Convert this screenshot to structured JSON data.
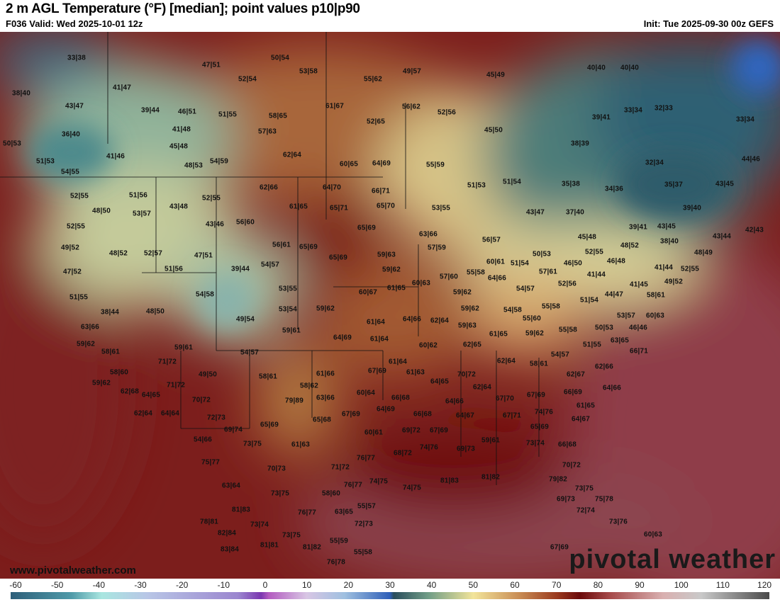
{
  "header": {
    "title": "2 m AGL Temperature (°F) [median]; point values p10|p90",
    "valid": "F036 Valid: Wed 2025-10-01 12z",
    "init": "Init: Tue 2025-09-30 00z GEFS"
  },
  "footer": {
    "website": "www.pivotalweather.com",
    "logo_text": "pivotal weather"
  },
  "colorbar": {
    "unit": "°F",
    "ticks": [
      "-60",
      "-50",
      "-40",
      "-30",
      "-20",
      "-10",
      "0",
      "10",
      "20",
      "30",
      "40",
      "50",
      "60",
      "70",
      "80",
      "90",
      "100",
      "110",
      "120"
    ]
  },
  "colors": {
    "cold": "#2e5f7a",
    "mild": "#f2e49a",
    "warm": "#6b0a0a",
    "ocean_warm": "#8d3b46"
  },
  "point_values": [
    "33|38",
    "38|40",
    "43|47",
    "47|51",
    "50|54",
    "53|58",
    "52|54",
    "55|62",
    "49|57",
    "45|49",
    "41|47",
    "39|44",
    "46|51",
    "51|55",
    "58|65",
    "61|67",
    "56|62",
    "52|56",
    "40|40",
    "40|40",
    "33|34",
    "32|33",
    "33|34",
    "39|41",
    "36|40",
    "50|53",
    "41|48",
    "57|63",
    "52|65",
    "45|50",
    "38|39",
    "45|48",
    "41|46",
    "51|53",
    "54|55",
    "54|59",
    "62|64",
    "48|53",
    "60|65",
    "64|69",
    "55|59",
    "32|34",
    "44|46",
    "62|66",
    "64|70",
    "66|71",
    "52|55",
    "51|56",
    "52|55",
    "51|53",
    "51|54",
    "35|38",
    "34|36",
    "35|37",
    "43|45",
    "43|48",
    "61|65",
    "65|71",
    "65|70",
    "53|55",
    "43|47",
    "37|40",
    "39|40",
    "48|50",
    "53|57",
    "52|55",
    "43|46",
    "56|60",
    "65|69",
    "63|66",
    "39|41",
    "43|45",
    "43|44",
    "42|43",
    "45|48",
    "49|52",
    "56|61",
    "65|69",
    "56|57",
    "57|59",
    "59|63",
    "48|52",
    "38|40",
    "48|49",
    "48|52",
    "52|57",
    "47|51",
    "65|69",
    "52|55",
    "50|53",
    "60|61",
    "51|54",
    "46|48",
    "46|50",
    "51|56",
    "39|44",
    "54|57",
    "47|52",
    "59|62",
    "57|60",
    "55|58",
    "60|63",
    "41|44",
    "52|55",
    "57|61",
    "41|44",
    "64|66",
    "53|55",
    "54|58",
    "60|67",
    "61|65",
    "59|62",
    "52|56",
    "41|45",
    "49|52",
    "54|57",
    "51|55",
    "44|47",
    "51|54",
    "54|58",
    "55|58",
    "58|61",
    "60|63",
    "38|44",
    "48|50",
    "53|54",
    "59|62",
    "59|62",
    "61|64",
    "49|54",
    "64|66",
    "62|64",
    "59|63",
    "55|60",
    "53|57",
    "63|66",
    "59|61",
    "64|69",
    "61|64",
    "61|65",
    "59|62",
    "55|58",
    "50|53",
    "46|46",
    "59|62",
    "60|62",
    "62|65",
    "51|55",
    "63|65",
    "58|61",
    "59|61",
    "54|57",
    "54|57",
    "66|71",
    "71|72",
    "62|64",
    "58|61",
    "58|60",
    "58|61",
    "61|66",
    "67|69",
    "61|64",
    "61|63",
    "70|72",
    "62|67",
    "62|66",
    "49|50",
    "59|62",
    "71|72",
    "58|62",
    "64|65",
    "62|64",
    "64|66",
    "66|69",
    "62|68",
    "64|65",
    "70|72",
    "79|89",
    "63|66",
    "60|64",
    "66|68",
    "64|66",
    "67|70",
    "67|69",
    "61|65",
    "64|69",
    "74|76",
    "62|64",
    "64|64",
    "72|73",
    "67|69",
    "66|68",
    "65|68",
    "64|67",
    "67|71",
    "64|67",
    "65|69",
    "69|74",
    "60|61",
    "69|72",
    "67|69",
    "65|69",
    "54|66",
    "73|75",
    "61|63",
    "59|61",
    "73|74",
    "66|68",
    "68|72",
    "74|76",
    "69|73",
    "75|77",
    "76|77",
    "71|72",
    "70|72",
    "70|73",
    "63|64",
    "76|77",
    "74|75",
    "74|75",
    "81|83",
    "81|82",
    "79|82",
    "73|75",
    "73|75",
    "58|60",
    "69|73",
    "75|78",
    "81|83",
    "76|77",
    "63|65",
    "55|57",
    "72|74",
    "78|81",
    "73|74",
    "72|73",
    "73|76",
    "82|84",
    "73|75",
    "55|59",
    "60|63",
    "83|84",
    "81|81",
    "81|82",
    "55|58",
    "67|69",
    "76|78",
    "54|57"
  ]
}
